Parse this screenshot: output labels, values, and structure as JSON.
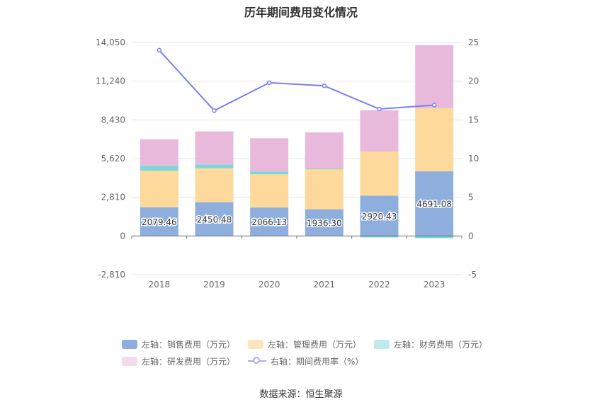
{
  "chart_data": {
    "type": "bar",
    "title": "历年期间费用变化情况",
    "categories": [
      "2018",
      "2019",
      "2020",
      "2021",
      "2022",
      "2023"
    ],
    "series": [
      {
        "name": "左轴：销售费用（万元）",
        "kind": "bar",
        "axis": "left",
        "color": "#8eaedd",
        "values": [
          2079.46,
          2450.48,
          2066.13,
          1936.3,
          2920.43,
          4691.08
        ],
        "labels": [
          "2079.46",
          "2450.48",
          "2066.13",
          "1936.30",
          "2920.43",
          "4691.08"
        ]
      },
      {
        "name": "左轴：管理费用（万元）",
        "kind": "bar",
        "axis": "left",
        "color": "#fdd99b",
        "values": [
          2650,
          2460,
          2410,
          2910,
          3220,
          4590
        ]
      },
      {
        "name": "左轴：财务费用（万元）",
        "kind": "bar",
        "axis": "left",
        "color": "#7fd6da",
        "values": [
          380,
          280,
          210,
          60,
          -110,
          -160
        ]
      },
      {
        "name": "左轴：研发费用（万元）",
        "kind": "bar",
        "axis": "left",
        "color": "#e8b9da",
        "values": [
          1910,
          2400,
          2410,
          2610,
          2990,
          4580
        ]
      },
      {
        "name": "右轴：期间费用率（%）",
        "kind": "line",
        "axis": "right",
        "color": "#7b7ff2",
        "values": [
          24.0,
          16.2,
          19.8,
          19.4,
          16.4,
          16.9
        ]
      }
    ],
    "left_axis": {
      "min": -2810,
      "max": 14050,
      "ticks": [
        -2810,
        0,
        2810,
        5620,
        8430,
        11240,
        14050
      ],
      "tick_labels": [
        "-2,810",
        "0",
        "2,810",
        "5,620",
        "8,430",
        "11,240",
        "14,050"
      ]
    },
    "right_axis": {
      "min": -5,
      "max": 25,
      "ticks": [
        -5,
        0,
        5,
        10,
        15,
        20,
        25
      ],
      "tick_labels": [
        "-5",
        "0",
        "5",
        "10",
        "15",
        "20",
        "25"
      ]
    },
    "legend_position": "bottom",
    "grid": true
  },
  "legend": {
    "row1": [
      "左轴：销售费用（万元）",
      "左轴：管理费用（万元）",
      "左轴：财务费用（万元）"
    ],
    "row2_bar": "左轴：研发费用（万元）",
    "row2_line": "右轴：期间费用率（%）"
  },
  "source": "数据来源：恒生聚源"
}
